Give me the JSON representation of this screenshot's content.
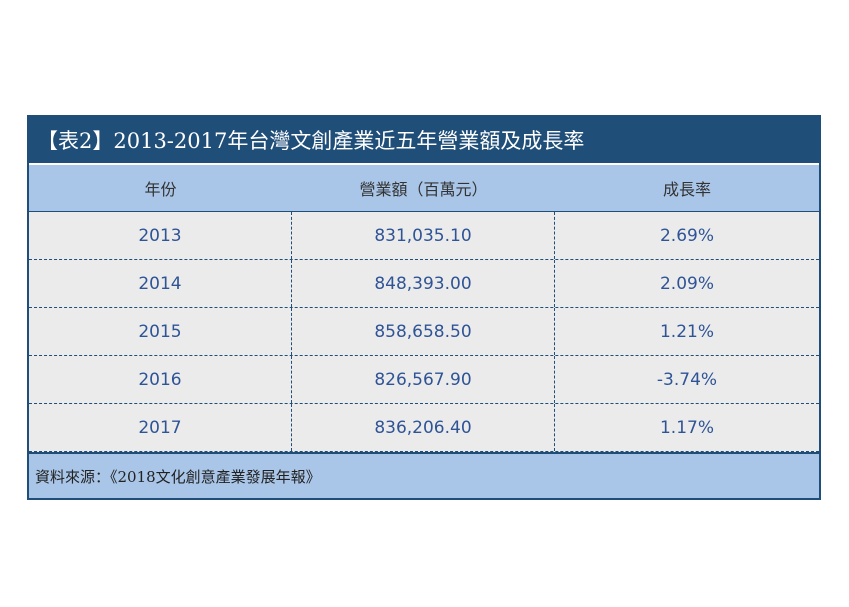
{
  "table": {
    "title": "【表2】2013-2017年台灣文創產業近五年營業額及成長率",
    "headers": [
      "年份",
      "營業額（百萬元）",
      "成長率"
    ],
    "rows": [
      [
        "2013",
        "831,035.10",
        "2.69%"
      ],
      [
        "2014",
        "848,393.00",
        "2.09%"
      ],
      [
        "2015",
        "858,658.50",
        "1.21%"
      ],
      [
        "2016",
        "826,567.90",
        "-3.74%"
      ],
      [
        "2017",
        "836,206.40",
        "1.17%"
      ]
    ],
    "source": "資料來源：《2018文化創意產業發展年報》"
  },
  "colors": {
    "title_bg": "#1f4e79",
    "header_bg": "#a9c6e8",
    "row_bg": "#ebebeb",
    "cell_text": "#2f5496"
  }
}
